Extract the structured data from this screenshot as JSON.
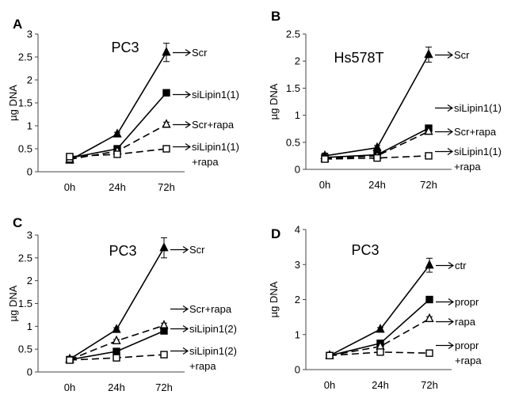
{
  "figure": {
    "background": "#ffffff",
    "line_color": "#000000"
  },
  "chart_data": [
    {
      "panel": "A",
      "title": "PC3",
      "type": "line",
      "categories": [
        "0h",
        "24h",
        "72h"
      ],
      "ylabel": "µg DNA",
      "ylim": [
        0,
        3
      ],
      "yticks": [
        "0",
        "0.5",
        "1",
        "1.5",
        "2",
        "2.5",
        "3"
      ],
      "series": [
        {
          "name": "Scr",
          "label_lines": [
            "Scr"
          ],
          "values": [
            0.25,
            0.82,
            2.6
          ],
          "errors": [
            0.03,
            0.04,
            0.2
          ],
          "marker": "triangle-filled",
          "dash": "solid"
        },
        {
          "name": "siLipin1(1)",
          "label_lines": [
            "siLipin1(1)"
          ],
          "values": [
            0.3,
            0.5,
            1.72
          ],
          "errors": [
            0.03,
            0.03,
            0.04
          ],
          "marker": "square-filled",
          "dash": "solid"
        },
        {
          "name": "Scr+rapa",
          "label_lines": [
            "Scr+rapa"
          ],
          "values": [
            0.27,
            0.45,
            1.03
          ],
          "errors": [
            0.03,
            0.03,
            0.05
          ],
          "marker": "triangle-open",
          "dash": "dashed"
        },
        {
          "name": "siLipin1(1) +rapa",
          "label_lines": [
            "siLipin1(1)",
            "+rapa"
          ],
          "values": [
            0.33,
            0.38,
            0.5
          ],
          "errors": [
            0.03,
            0.03,
            0.03
          ],
          "marker": "square-open",
          "dash": "dashed"
        }
      ]
    },
    {
      "panel": "B",
      "title": "Hs578T",
      "type": "line",
      "categories": [
        "0h",
        "24h",
        "72h"
      ],
      "ylabel": "µg DNA",
      "ylim": [
        0,
        2.5
      ],
      "yticks": [
        "0",
        "0.5",
        "1",
        "1.5",
        "2",
        "2.5"
      ],
      "series": [
        {
          "name": "Scr",
          "label_lines": [
            "Scr"
          ],
          "values": [
            0.25,
            0.4,
            2.12
          ],
          "errors": [
            0.05,
            0.04,
            0.14
          ],
          "marker": "triangle-filled",
          "dash": "solid"
        },
        {
          "name": "siLipin1(1)",
          "label_lines": [
            "siLipin1(1)"
          ],
          "values": [
            0.22,
            0.27,
            0.76
          ],
          "errors": [
            0.04,
            0.03,
            0.04
          ],
          "marker": "square-filled",
          "dash": "solid"
        },
        {
          "name": "Scr+rapa",
          "label_lines": [
            "Scr+rapa"
          ],
          "values": [
            0.2,
            0.25,
            0.7
          ],
          "errors": [
            0.04,
            0.03,
            0.04
          ],
          "marker": "triangle-open",
          "dash": "dashed"
        },
        {
          "name": "siLipin1(1) +rapa",
          "label_lines": [
            "siLipin1(1)",
            "+rapa"
          ],
          "values": [
            0.19,
            0.21,
            0.25
          ],
          "errors": [
            0.03,
            0.03,
            0.03
          ],
          "marker": "square-open",
          "dash": "dashed"
        }
      ]
    },
    {
      "panel": "C",
      "title": "PC3",
      "type": "line",
      "categories": [
        "0h",
        "24h",
        "72h"
      ],
      "ylabel": "µg DNA",
      "ylim": [
        0,
        3
      ],
      "yticks": [
        "0",
        "0.5",
        "1",
        "1.5",
        "2",
        "2.5",
        "3"
      ],
      "series": [
        {
          "name": "Scr",
          "label_lines": [
            "Scr"
          ],
          "values": [
            0.28,
            0.93,
            2.72
          ],
          "errors": [
            0.03,
            0.04,
            0.22
          ],
          "marker": "triangle-filled",
          "dash": "solid"
        },
        {
          "name": "Scr+rapa",
          "label_lines": [
            "Scr+rapa"
          ],
          "values": [
            0.27,
            0.68,
            1.02
          ],
          "errors": [
            0.03,
            0.03,
            0.05
          ],
          "marker": "triangle-open",
          "dash": "dashed"
        },
        {
          "name": "siLipin1(2)",
          "label_lines": [
            "siLipin1(2)"
          ],
          "values": [
            0.27,
            0.45,
            0.9
          ],
          "errors": [
            0.03,
            0.03,
            0.05
          ],
          "marker": "square-filled",
          "dash": "solid"
        },
        {
          "name": "siLipin1(2) +rapa",
          "label_lines": [
            "siLipin1(2)",
            "+rapa"
          ],
          "values": [
            0.26,
            0.31,
            0.38
          ],
          "errors": [
            0.03,
            0.03,
            0.03
          ],
          "marker": "square-open",
          "dash": "dashed"
        }
      ]
    },
    {
      "panel": "D",
      "title": "PC3",
      "type": "line",
      "categories": [
        "0h",
        "24h",
        "72h"
      ],
      "ylabel": "µg DNA",
      "ylim": [
        0,
        4
      ],
      "yticks": [
        "0",
        "1",
        "2",
        "3",
        "4"
      ],
      "series": [
        {
          "name": "ctr",
          "label_lines": [
            "ctr"
          ],
          "values": [
            0.4,
            1.15,
            2.98
          ],
          "errors": [
            0.04,
            0.05,
            0.2
          ],
          "marker": "triangle-filled",
          "dash": "solid"
        },
        {
          "name": "propr",
          "label_lines": [
            "propr"
          ],
          "values": [
            0.4,
            0.75,
            2.0
          ],
          "errors": [
            0.04,
            0.04,
            0.05
          ],
          "marker": "square-filled",
          "dash": "solid"
        },
        {
          "name": "rapa",
          "label_lines": [
            "rapa"
          ],
          "values": [
            0.4,
            0.66,
            1.45
          ],
          "errors": [
            0.04,
            0.04,
            0.06
          ],
          "marker": "triangle-open",
          "dash": "dashed"
        },
        {
          "name": "propr +rapa",
          "label_lines": [
            "propr",
            "+rapa"
          ],
          "values": [
            0.4,
            0.5,
            0.47
          ],
          "errors": [
            0.04,
            0.04,
            0.04
          ],
          "marker": "square-open",
          "dash": "dashed"
        }
      ]
    }
  ]
}
